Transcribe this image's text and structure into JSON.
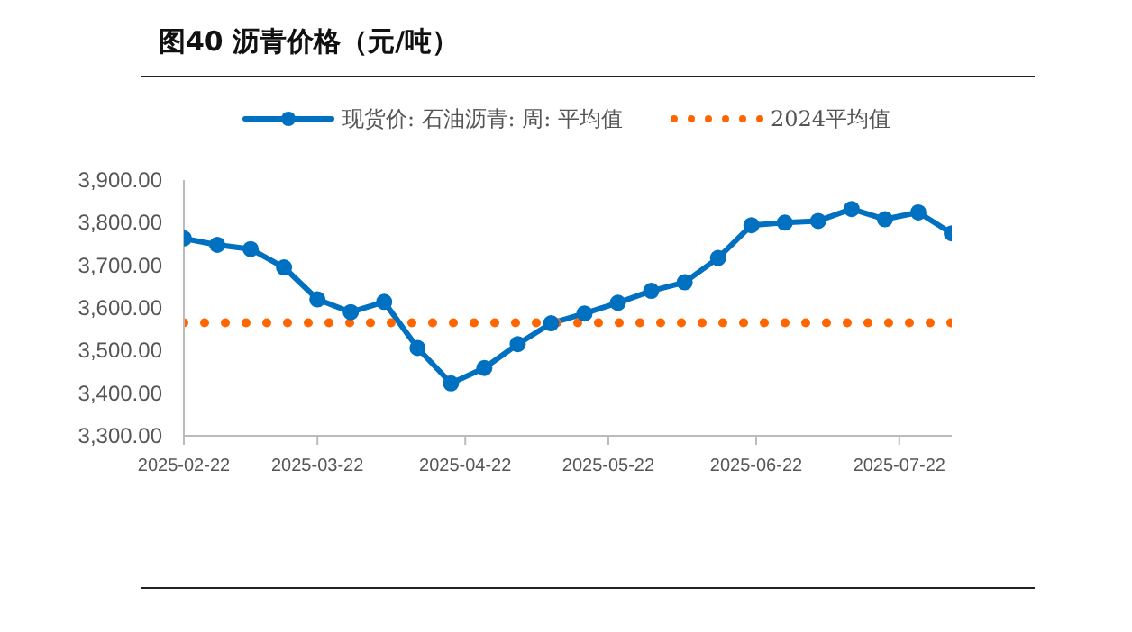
{
  "chart_data": {
    "type": "line",
    "title": "图40 沥青价格（元/吨）",
    "x": [
      "2025-02-22",
      "2025-03-01",
      "2025-03-08",
      "2025-03-15",
      "2025-03-22",
      "2025-03-29",
      "2025-04-05",
      "2025-04-12",
      "2025-04-19",
      "2025-04-26",
      "2025-05-03",
      "2025-05-10",
      "2025-05-17",
      "2025-05-24",
      "2025-05-31",
      "2025-06-07",
      "2025-06-14",
      "2025-06-21",
      "2025-06-28",
      "2025-07-05",
      "2025-07-12",
      "2025-07-19",
      "2025-07-26",
      "2025-08-02"
    ],
    "series": [
      {
        "name": "现货价: 石油沥青: 周: 平均值",
        "color": "#0070c0",
        "marker": "circle",
        "line_style": "solid",
        "values": [
          3763,
          3748,
          3738,
          3695,
          3620,
          3590,
          3614,
          3506,
          3423,
          3459,
          3515,
          3564,
          3587,
          3612,
          3640,
          3660,
          3717,
          3794,
          3800,
          3804,
          3832,
          3808,
          3824,
          3775
        ]
      },
      {
        "name": "2024平均值",
        "color": "#ff6600",
        "marker": "none",
        "line_style": "dotted",
        "values": [
          3565,
          3565,
          3565,
          3565,
          3565,
          3565,
          3565,
          3565,
          3565,
          3565,
          3565,
          3565,
          3565,
          3565,
          3565,
          3565,
          3565,
          3565,
          3565,
          3565,
          3565,
          3565,
          3565,
          3565
        ]
      }
    ],
    "xlim": [
      "2025-02-22",
      "2025-08-02"
    ],
    "xticks": [
      "2025-02-22",
      "2025-03-22",
      "2025-04-22",
      "2025-05-22",
      "2025-06-22",
      "2025-07-22"
    ],
    "ylim": [
      3300,
      3900
    ],
    "yticks": [
      {
        "value": 3300,
        "label": "3,300.00"
      },
      {
        "value": 3400,
        "label": "3,400.00"
      },
      {
        "value": 3500,
        "label": "3,500.00"
      },
      {
        "value": 3600,
        "label": "3,600.00"
      },
      {
        "value": 3700,
        "label": "3,700.00"
      },
      {
        "value": 3800,
        "label": "3,800.00"
      },
      {
        "value": 3900,
        "label": "3,900.00"
      }
    ],
    "grid": false,
    "legend": "top"
  }
}
